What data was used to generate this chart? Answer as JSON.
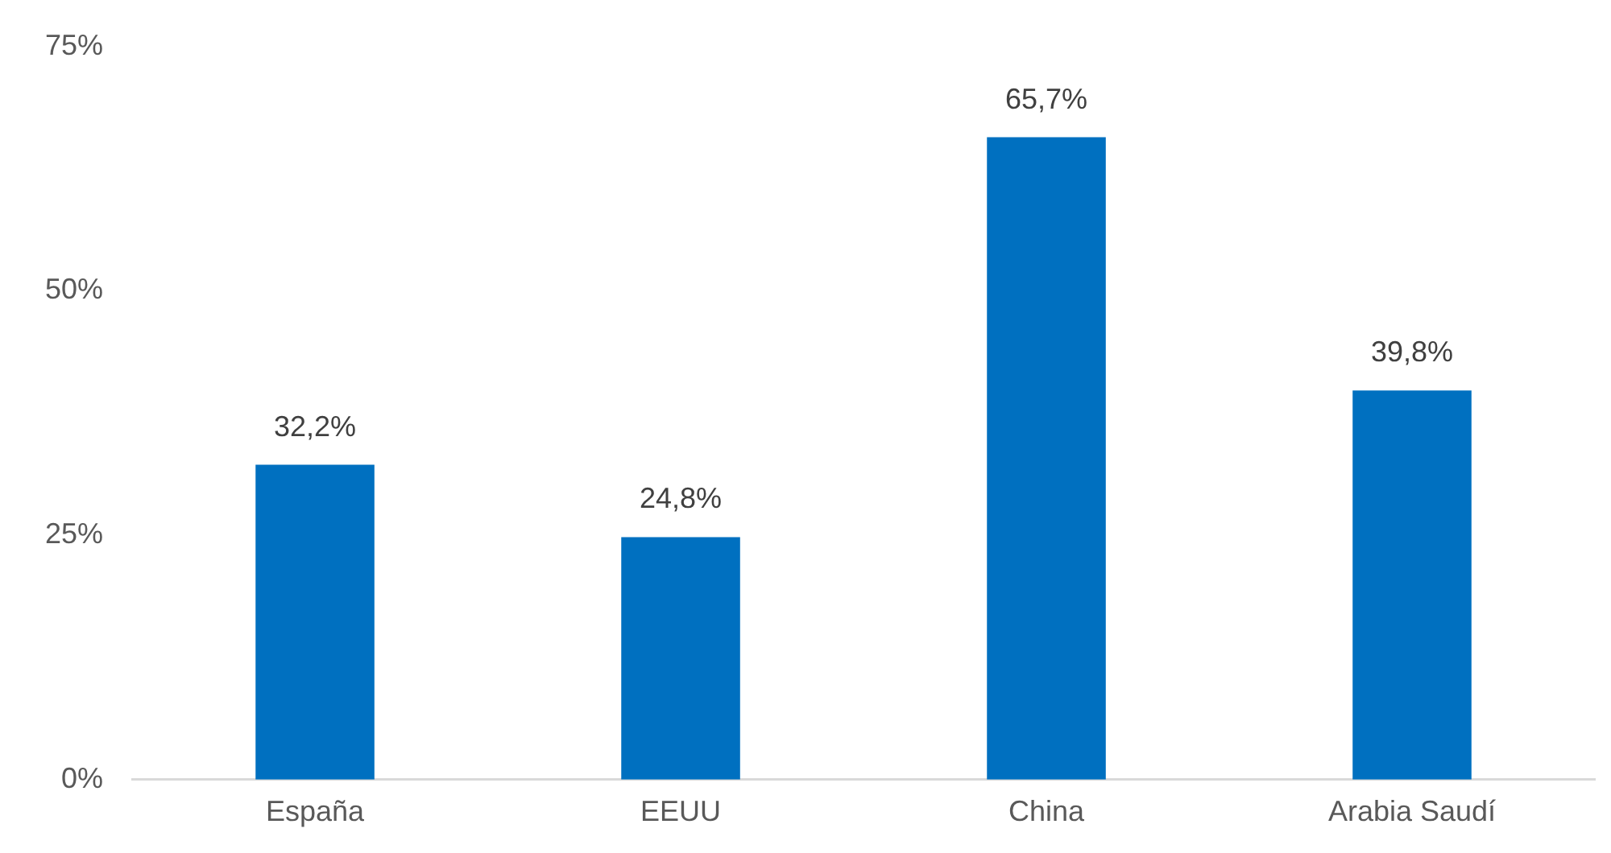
{
  "chart_data": {
    "type": "bar",
    "categories": [
      "España",
      "EEUU",
      "China",
      "Arabia Saudí"
    ],
    "values": [
      32.2,
      24.8,
      65.7,
      39.8
    ],
    "color": "#0070c0",
    "value_labels": [
      "32,2%",
      "24,8%",
      "65,7%",
      "39,8%"
    ],
    "ylim": [
      0,
      75
    ],
    "yticks": [
      {
        "value": 0,
        "label": "0%"
      },
      {
        "value": 25,
        "label": "25%"
      },
      {
        "value": 50,
        "label": "50%"
      },
      {
        "value": 75,
        "label": "75%"
      }
    ],
    "grid": false,
    "legend": false
  }
}
